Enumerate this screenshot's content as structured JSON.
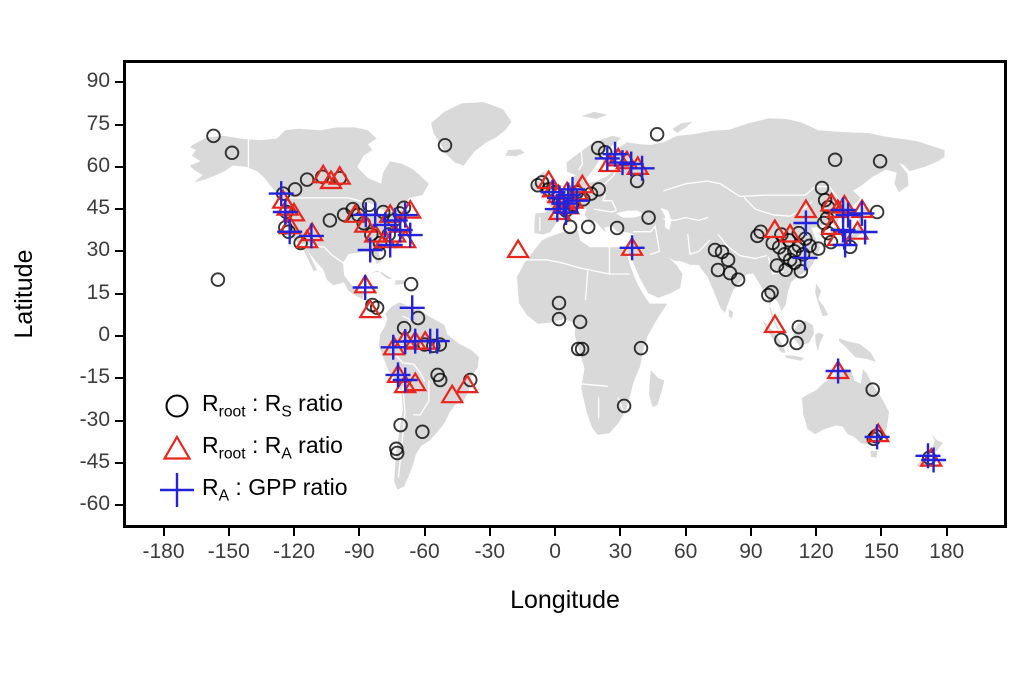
{
  "figure": {
    "x_axis_title": "Longitude",
    "y_axis_title": "Latitude"
  },
  "legend": {
    "items": [
      {
        "marker": "circle",
        "parts": [
          {
            "t": "R"
          },
          {
            "t": "root",
            "sub": true
          },
          {
            "t": " : "
          },
          {
            "t": "R"
          },
          {
            "t": "S",
            "sub": true
          },
          {
            "t": " ratio"
          }
        ]
      },
      {
        "marker": "triangle",
        "parts": [
          {
            "t": "R"
          },
          {
            "t": "root",
            "sub": true
          },
          {
            "t": " : "
          },
          {
            "t": "R"
          },
          {
            "t": "A",
            "sub": true
          },
          {
            "t": " ratio"
          }
        ]
      },
      {
        "marker": "plus",
        "parts": [
          {
            "t": "R"
          },
          {
            "t": "A",
            "sub": true
          },
          {
            "t": " : GPP ratio"
          }
        ]
      }
    ]
  },
  "colors": {
    "circle": "#0a0a0a",
    "triangle": "#e8261d",
    "plus": "#2323dc",
    "land": "#d9d9d9",
    "country_border": "#ffffff",
    "tick_text": "#3c3c3c"
  },
  "chart_data": {
    "type": "scatter",
    "title": "",
    "xlabel": "Longitude",
    "ylabel": "Latitude",
    "xlim": [
      -197.7,
      206.8
    ],
    "ylim": [
      -67.4,
      97.2
    ],
    "x_ticks": [
      -180,
      -150,
      -120,
      -90,
      -60,
      -30,
      0,
      30,
      60,
      90,
      120,
      150,
      180
    ],
    "y_ticks": [
      90,
      75,
      60,
      45,
      30,
      15,
      0,
      -15,
      -30,
      -45,
      -60
    ],
    "grid": false,
    "legend_position": "inside bottom-left",
    "basemap": "world landmasses, light gray with white country borders, equirectangular",
    "series": [
      {
        "name": "Rroot : RS ratio",
        "marker": "circle",
        "color": "#0a0a0a",
        "points": [
          [
            -157,
            71
          ],
          [
            -148.5,
            65
          ],
          [
            -50.6,
            67.7
          ],
          [
            -155,
            20
          ],
          [
            -125,
            50.5
          ],
          [
            -123.5,
            44
          ],
          [
            -124,
            38.5
          ],
          [
            -122.5,
            37
          ],
          [
            -117,
            33
          ],
          [
            -119.5,
            52
          ],
          [
            -114,
            55.5
          ],
          [
            -107,
            56.5
          ],
          [
            -99,
            56
          ],
          [
            -103.5,
            41
          ],
          [
            -97,
            43
          ],
          [
            -93,
            45
          ],
          [
            -90.5,
            43
          ],
          [
            -88,
            40
          ],
          [
            -84.5,
            36
          ],
          [
            -80.5,
            33
          ],
          [
            -81,
            29.5
          ],
          [
            -76.5,
            36
          ],
          [
            -74,
            41
          ],
          [
            -71.5,
            43.5
          ],
          [
            -69.5,
            45.5
          ],
          [
            -79,
            44
          ],
          [
            -85.5,
            46.5
          ],
          [
            -66.2,
            18.4
          ],
          [
            -84,
            11
          ],
          [
            -81.8,
            10
          ],
          [
            -63,
            6.4
          ],
          [
            -69.4,
            2.8
          ],
          [
            -60,
            -3
          ],
          [
            -56,
            -3.5
          ],
          [
            -53,
            -3
          ],
          [
            -54,
            -13.8
          ],
          [
            -52.8,
            -15.6
          ],
          [
            -39,
            -15.6
          ],
          [
            -71,
            -31.6
          ],
          [
            -61,
            -34
          ],
          [
            -73,
            -40
          ],
          [
            -72.6,
            -41.5
          ],
          [
            1.8,
            11.7
          ],
          [
            1.8,
            6
          ],
          [
            11.5,
            5
          ],
          [
            10.6,
            -4.6
          ],
          [
            12.4,
            -4.6
          ],
          [
            39.5,
            -4.3
          ],
          [
            31.7,
            -24.8
          ],
          [
            -8,
            53.5
          ],
          [
            -6,
            54.5
          ],
          [
            -3,
            52
          ],
          [
            0,
            51
          ],
          [
            2.5,
            48
          ],
          [
            5,
            44.5
          ],
          [
            8,
            46.5
          ],
          [
            10,
            51
          ],
          [
            13,
            48.5
          ],
          [
            16.5,
            50.5
          ],
          [
            20,
            52
          ],
          [
            6.9,
            38.7
          ],
          [
            15.2,
            38.7
          ],
          [
            28.5,
            38.3
          ],
          [
            43,
            42
          ],
          [
            37.7,
            55
          ],
          [
            46.9,
            71.6
          ],
          [
            19.8,
            66.7
          ],
          [
            23,
            65.2
          ],
          [
            73.5,
            30.5
          ],
          [
            76.7,
            29.8
          ],
          [
            79.5,
            27
          ],
          [
            74.9,
            23.4
          ],
          [
            80.4,
            22.3
          ],
          [
            84.1,
            20
          ],
          [
            93,
            35.5
          ],
          [
            94.5,
            37
          ],
          [
            128.7,
            62.5
          ],
          [
            149.4,
            62
          ],
          [
            100,
            33
          ],
          [
            103,
            31.5
          ],
          [
            105.5,
            29
          ],
          [
            108,
            27
          ],
          [
            110,
            30
          ],
          [
            112,
            32
          ],
          [
            107.5,
            34
          ],
          [
            104,
            36
          ],
          [
            112,
            36.5
          ],
          [
            115,
            34.5
          ],
          [
            117,
            32
          ],
          [
            114,
            29
          ],
          [
            110,
            26
          ],
          [
            106,
            23.5
          ],
          [
            102,
            25
          ],
          [
            113,
            23
          ],
          [
            121,
            31
          ],
          [
            122.7,
            52.5
          ],
          [
            124.1,
            48.2
          ],
          [
            125.5,
            45.7
          ],
          [
            125,
            41.8
          ],
          [
            123.6,
            40.1
          ],
          [
            125.5,
            36.5
          ],
          [
            126.8,
            33.3
          ],
          [
            135.6,
            31.6
          ],
          [
            148,
            44
          ],
          [
            98,
            14.5
          ],
          [
            99.5,
            15.5
          ],
          [
            112,
            3.2
          ],
          [
            104,
            -1.4
          ],
          [
            111,
            -2.5
          ],
          [
            146,
            -19
          ],
          [
            147.5,
            -35.5
          ],
          [
            146.5,
            -36.5
          ],
          [
            172,
            -43.2
          ]
        ]
      },
      {
        "name": "Rroot : RA ratio",
        "marker": "triangle",
        "color": "#e8261d",
        "points": [
          [
            -106.6,
            57
          ],
          [
            -99,
            56.5
          ],
          [
            -103,
            55
          ],
          [
            -125,
            48
          ],
          [
            -123,
            45.5
          ],
          [
            -120,
            43.5
          ],
          [
            -122,
            39
          ],
          [
            -111.7,
            36.5
          ],
          [
            -114,
            34
          ],
          [
            -91.9,
            43
          ],
          [
            -87.3,
            39.5
          ],
          [
            -82.7,
            36
          ],
          [
            -78.1,
            34
          ],
          [
            -73.5,
            36
          ],
          [
            -71.2,
            39.5
          ],
          [
            -75.8,
            43
          ],
          [
            -68.9,
            34
          ],
          [
            -66.6,
            44.5
          ],
          [
            -87.3,
            18
          ],
          [
            -85,
            9.2
          ],
          [
            -74,
            -4
          ],
          [
            -69,
            -1.5
          ],
          [
            -64.3,
            -2
          ],
          [
            -59.7,
            -2
          ],
          [
            -72.2,
            -13.8
          ],
          [
            -68.9,
            -17.4
          ],
          [
            -64.3,
            -16.7
          ],
          [
            -47.3,
            -21
          ],
          [
            -40.4,
            -17.4
          ],
          [
            -17,
            30.5
          ],
          [
            35.4,
            31.3
          ],
          [
            -3,
            55
          ],
          [
            -1,
            52
          ],
          [
            1.5,
            50
          ],
          [
            3.5,
            47.5
          ],
          [
            6,
            46
          ],
          [
            8,
            48
          ],
          [
            10.5,
            51
          ],
          [
            12.5,
            53.5
          ],
          [
            5.5,
            51
          ],
          [
            2,
            44
          ],
          [
            25,
            61
          ],
          [
            29,
            63
          ],
          [
            33,
            62
          ],
          [
            38,
            60
          ],
          [
            101,
            37.6
          ],
          [
            108,
            36
          ],
          [
            115.3,
            44.7
          ],
          [
            127,
            47
          ],
          [
            130,
            44.7
          ],
          [
            133,
            46.3
          ],
          [
            127.3,
            38.7
          ],
          [
            130.1,
            34.8
          ],
          [
            139,
            37
          ],
          [
            141.1,
            44.7
          ],
          [
            101.1,
            3.9
          ],
          [
            130.1,
            -12.4
          ],
          [
            148.5,
            -34.8
          ],
          [
            172.9,
            -43.5
          ]
        ]
      },
      {
        "name": "RA : GPP ratio",
        "marker": "plus",
        "color": "#2323dc",
        "points": [
          [
            -125.9,
            50.5
          ],
          [
            -124,
            44
          ],
          [
            -112,
            35.5
          ],
          [
            -122,
            37
          ],
          [
            -87,
            43
          ],
          [
            -82.7,
            42.9
          ],
          [
            -78.1,
            39.4
          ],
          [
            -73.5,
            41
          ],
          [
            -71.2,
            37.6
          ],
          [
            -68.9,
            42.9
          ],
          [
            -75.8,
            32.3
          ],
          [
            -66.6,
            35.8
          ],
          [
            -85,
            30.5
          ],
          [
            -87.3,
            17.2
          ],
          [
            -65.7,
            10
          ],
          [
            -74.4,
            -4
          ],
          [
            -68.9,
            -2
          ],
          [
            -64.3,
            -1.8
          ],
          [
            -57.4,
            -1.8
          ],
          [
            -54.2,
            -1.8
          ],
          [
            -72.2,
            -13.8
          ],
          [
            -68.9,
            -15.6
          ],
          [
            -1,
            51
          ],
          [
            2,
            49
          ],
          [
            4,
            47
          ],
          [
            6,
            50
          ],
          [
            8,
            52
          ],
          [
            10,
            48
          ],
          [
            1,
            45
          ],
          [
            5,
            43.8
          ],
          [
            24,
            63
          ],
          [
            27.6,
            64.5
          ],
          [
            31,
            61.5
          ],
          [
            35,
            61
          ],
          [
            40,
            59.5
          ],
          [
            35.4,
            31.3
          ],
          [
            115.3,
            40.1
          ],
          [
            114.9,
            27.7
          ],
          [
            132.4,
            44.7
          ],
          [
            134.7,
            42.9
          ],
          [
            132.4,
            37.6
          ],
          [
            135.6,
            36.9
          ],
          [
            133.3,
            32.3
          ],
          [
            142.5,
            36.9
          ],
          [
            141,
            43.5
          ],
          [
            130.1,
            -12.4
          ],
          [
            148,
            -35.8
          ],
          [
            171.4,
            -42.5
          ],
          [
            174,
            -44
          ]
        ]
      }
    ]
  }
}
